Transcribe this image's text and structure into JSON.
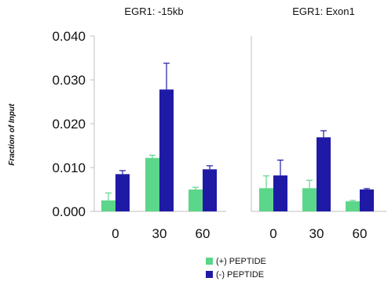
{
  "chart_data": [
    {
      "type": "bar",
      "title": "EGR1: -15kb",
      "ylabel": "Fraction of Input",
      "categories": [
        "0",
        "30",
        "60"
      ],
      "ylim": [
        0,
        0.04
      ],
      "yticks": [
        "0.000",
        "0.010",
        "0.020",
        "0.030",
        "0.040"
      ],
      "series": [
        {
          "name": "(+) PEPTIDE",
          "color": "#5cd68a",
          "values": [
            0.0025,
            0.0122,
            0.005
          ],
          "errors": [
            0.0017,
            0.0006,
            0.0005
          ]
        },
        {
          "name": "(-) PEPTIDE",
          "color": "#1f1aa6",
          "values": [
            0.0085,
            0.0278,
            0.0096
          ],
          "errors": [
            0.0008,
            0.006,
            0.0008
          ]
        }
      ]
    },
    {
      "type": "bar",
      "title": "EGR1: Exon1",
      "categories": [
        "0",
        "30",
        "60"
      ],
      "ylim": [
        0,
        0.04
      ],
      "series": [
        {
          "name": "(+) PEPTIDE",
          "color": "#5cd68a",
          "values": [
            0.0053,
            0.0053,
            0.0023
          ],
          "errors": [
            0.0028,
            0.0018,
            0.0002
          ]
        },
        {
          "name": "(-) PEPTIDE",
          "color": "#1f1aa6",
          "values": [
            0.0082,
            0.0169,
            0.005
          ],
          "errors": [
            0.0035,
            0.0015,
            0.0002
          ]
        }
      ]
    }
  ],
  "legend": {
    "items": [
      {
        "label": "(+) PEPTIDE",
        "color": "#5cd68a"
      },
      {
        "label": "(-) PEPTIDE",
        "color": "#1f1aa6"
      }
    ]
  }
}
